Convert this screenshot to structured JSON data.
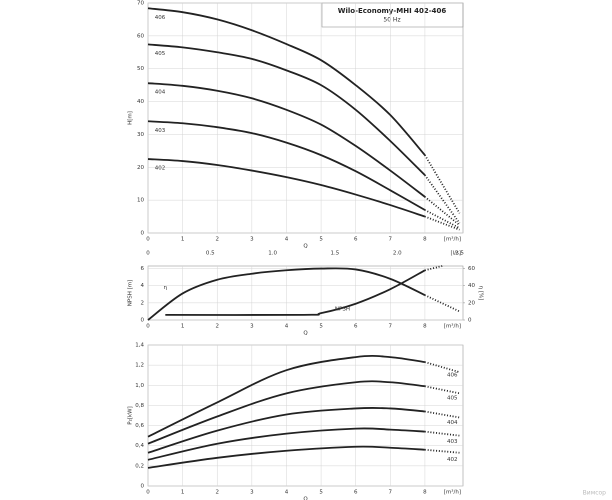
{
  "title": "Wilo-Economy-MHI 402-406",
  "subtitle": "50 Hz",
  "watermark": "Вимсор",
  "chart_data": [
    {
      "type": "line",
      "ylabel": "H[m]",
      "xlabel": "Q",
      "xunit": "[m³/h]",
      "x2unit": "[l/s]",
      "xlim": [
        0,
        9.1
      ],
      "ylim": [
        0,
        70
      ],
      "x2lim": [
        0,
        2.528
      ],
      "xticks": [
        0,
        1,
        2,
        3,
        4,
        5,
        6,
        7,
        8
      ],
      "yticks": [
        0,
        10,
        20,
        30,
        40,
        50,
        60,
        70
      ],
      "x2ticks": [
        0,
        0.5,
        {
          "value": 1,
          "label": "1.0"
        },
        1.5,
        {
          "value": 2,
          "label": "2.0"
        },
        2.5
      ],
      "grid": true,
      "dotted_after": 8,
      "series_label_side": "left",
      "x": [
        0,
        1,
        2,
        3,
        4,
        5,
        6,
        7,
        8,
        9
      ],
      "series": [
        {
          "name": "406",
          "color": "#222222",
          "values": [
            68.4,
            67.2,
            65,
            61.7,
            57.5,
            52.6,
            45,
            35.9,
            23.7,
            6
          ]
        },
        {
          "name": "405",
          "color": "#222222",
          "values": [
            57.4,
            56.5,
            55,
            53,
            49.5,
            45,
            37.5,
            28,
            17.6,
            3
          ]
        },
        {
          "name": "404",
          "color": "#222222",
          "values": [
            45.6,
            44.8,
            43.3,
            41,
            37.5,
            33,
            26.5,
            19,
            11,
            2.4
          ]
        },
        {
          "name": "403",
          "color": "#222222",
          "values": [
            34,
            33.4,
            32.2,
            30.4,
            27.5,
            23.7,
            18.8,
            13,
            7,
            1.5
          ]
        },
        {
          "name": "402",
          "color": "#222222",
          "values": [
            22.5,
            21.9,
            20.7,
            19,
            17,
            14.6,
            11.7,
            8.5,
            5,
            1
          ]
        }
      ]
    },
    {
      "type": "line",
      "ylabel": "NPSH [m]",
      "y2label": "η [%]",
      "xlabel": "Q",
      "xunit": "[m³/h]",
      "xlim": [
        0,
        9.1
      ],
      "ylim": [
        0,
        6.3
      ],
      "y2lim": [
        0,
        63
      ],
      "xticks": [
        0,
        1,
        2,
        3,
        4,
        5,
        6,
        7,
        8
      ],
      "yticks": [
        0,
        2,
        4,
        6
      ],
      "y2ticks": [
        0,
        20,
        40,
        60
      ],
      "grid": true,
      "dotted_after": 8,
      "series_label_side": "inline",
      "series": [
        {
          "name": "NPSH",
          "color": "#222222",
          "x": [
            0.5,
            4.5,
            5,
            6,
            7,
            8,
            8.5
          ],
          "values": [
            0.6,
            0.6,
            0.8,
            1.9,
            3.6,
            5.8,
            6.3
          ]
        },
        {
          "name": "η",
          "color": "#222222",
          "axis": "y2",
          "x": [
            0,
            1,
            2,
            3,
            4,
            5,
            6,
            7,
            8,
            9
          ],
          "values": [
            0,
            31,
            47,
            54,
            58,
            60,
            59,
            48,
            29,
            10
          ]
        }
      ]
    },
    {
      "type": "line",
      "ylabel": "P₂[kW]",
      "xlabel": "Q",
      "xunit": "[m³/h]",
      "xlim": [
        0,
        9.1
      ],
      "ylim": [
        0,
        1.4
      ],
      "xticks": [
        0,
        1,
        2,
        3,
        4,
        5,
        6,
        7,
        8
      ],
      "yticks": [
        0,
        {
          "value": 0.2,
          "label": "0,2"
        },
        {
          "value": 0.4,
          "label": "0,4"
        },
        {
          "value": 0.6,
          "label": "0,6"
        },
        {
          "value": 0.8,
          "label": "0,8"
        },
        {
          "value": 1,
          "label": "1,0"
        },
        {
          "value": 1.2,
          "label": "1,2"
        },
        {
          "value": 1.4,
          "label": "1,4"
        }
      ],
      "grid": true,
      "dotted_after": 8,
      "series_label_side": "right",
      "x": [
        0,
        2,
        4,
        6,
        7,
        8,
        9
      ],
      "series": [
        {
          "name": "406",
          "color": "#222222",
          "values": [
            0.49,
            0.83,
            1.15,
            1.28,
            1.28,
            1.23,
            1.13
          ]
        },
        {
          "name": "405",
          "color": "#222222",
          "values": [
            0.42,
            0.69,
            0.92,
            1.03,
            1.03,
            0.99,
            0.92
          ]
        },
        {
          "name": "404",
          "color": "#222222",
          "values": [
            0.33,
            0.55,
            0.71,
            0.77,
            0.77,
            0.74,
            0.68
          ]
        },
        {
          "name": "403",
          "color": "#222222",
          "values": [
            0.26,
            0.42,
            0.52,
            0.57,
            0.56,
            0.54,
            0.5
          ]
        },
        {
          "name": "402",
          "color": "#222222",
          "values": [
            0.18,
            0.28,
            0.35,
            0.39,
            0.38,
            0.36,
            0.33
          ]
        }
      ]
    }
  ]
}
